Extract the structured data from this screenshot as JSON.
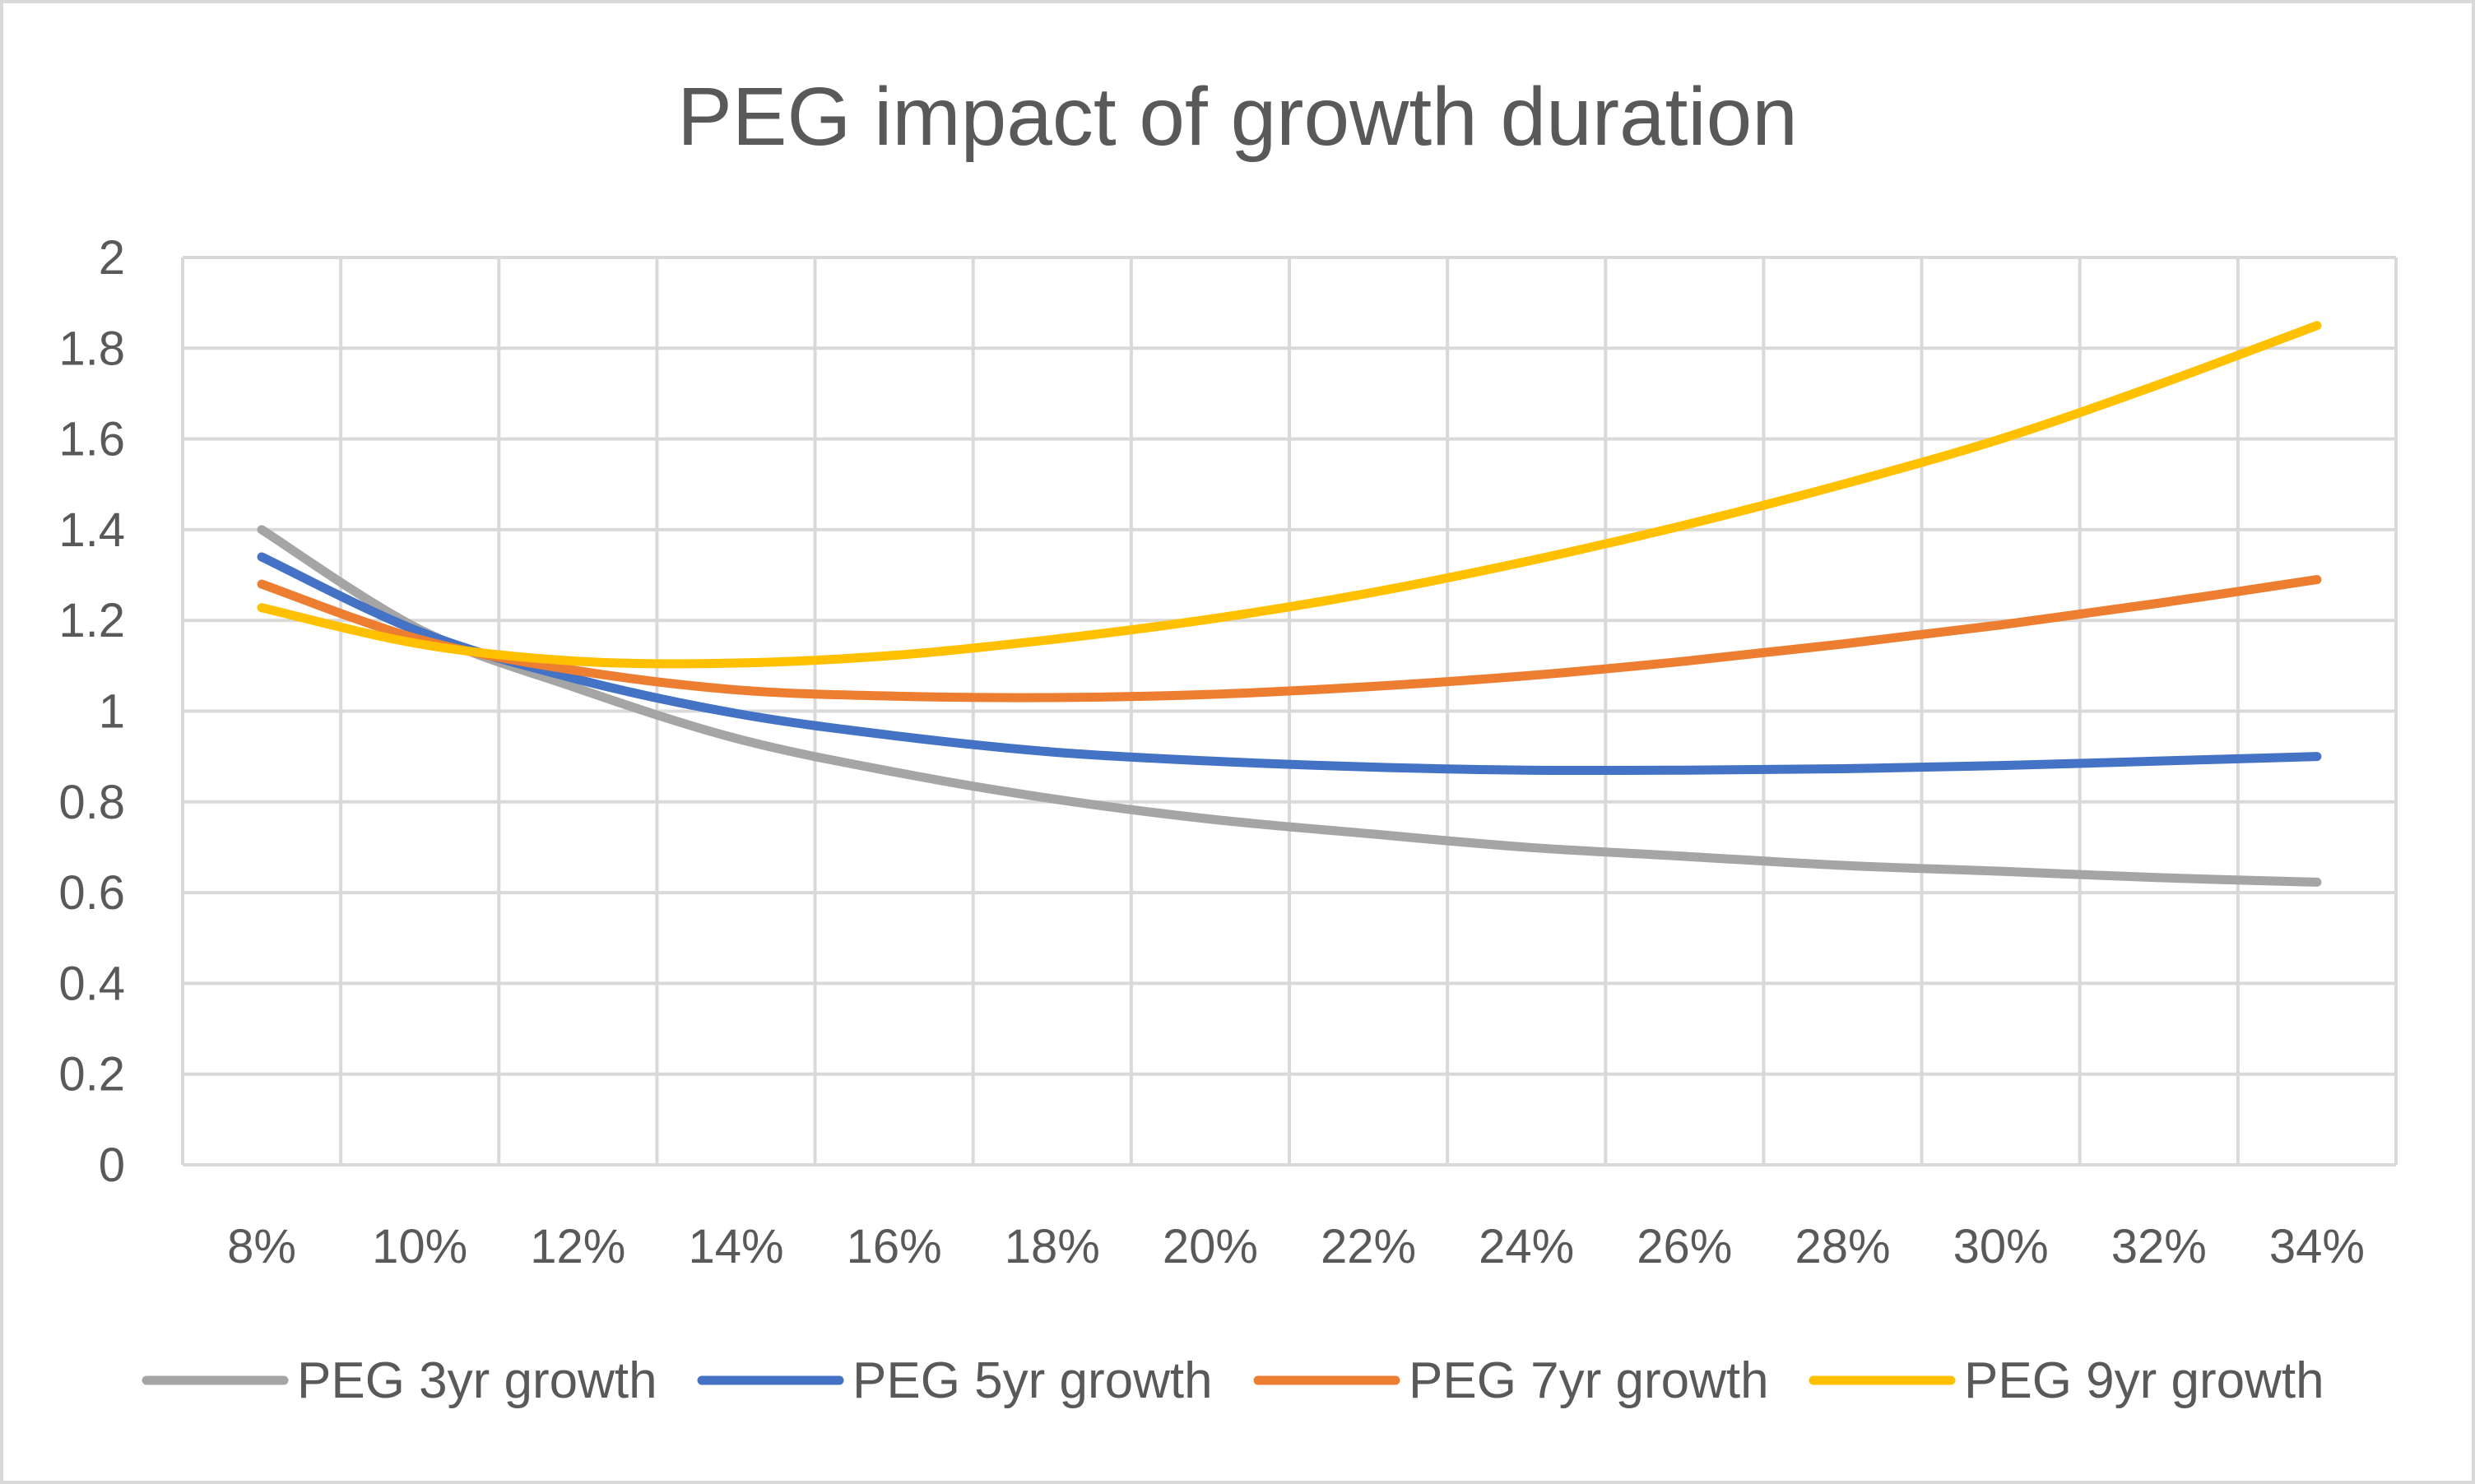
{
  "chart_data": {
    "type": "line",
    "title": "PEG impact of growth duration",
    "xlabel": "",
    "ylabel": "",
    "categories": [
      "8%",
      "10%",
      "12%",
      "14%",
      "16%",
      "18%",
      "20%",
      "22%",
      "24%",
      "26%",
      "28%",
      "30%",
      "32%",
      "34%"
    ],
    "ylim": [
      0,
      2
    ],
    "yticks": [
      "0",
      "0.2",
      "0.4",
      "0.6",
      "0.8",
      "1",
      "1.2",
      "1.4",
      "1.6",
      "1.8",
      "2"
    ],
    "grid": true,
    "legend_position": "bottom",
    "series": [
      {
        "name": "PEG 3yr growth",
        "color": "#A5A5A5",
        "values": [
          1.4,
          1.18,
          1.05,
          0.94,
          0.866,
          0.807,
          0.762,
          0.73,
          0.7,
          0.68,
          0.66,
          0.647,
          0.633,
          0.623
        ]
      },
      {
        "name": "PEG 5yr growth",
        "color": "#4472C4",
        "values": [
          1.34,
          1.175,
          1.07,
          0.995,
          0.946,
          0.91,
          0.89,
          0.877,
          0.87,
          0.87,
          0.873,
          0.88,
          0.89,
          0.9
        ]
      },
      {
        "name": "PEG 7yr growth",
        "color": "#ED7D31",
        "values": [
          1.28,
          1.158,
          1.089,
          1.047,
          1.033,
          1.03,
          1.037,
          1.054,
          1.078,
          1.11,
          1.148,
          1.19,
          1.238,
          1.29
        ]
      },
      {
        "name": "PEG 9yr growth",
        "color": "#FFC000",
        "values": [
          1.228,
          1.148,
          1.11,
          1.106,
          1.123,
          1.158,
          1.203,
          1.26,
          1.33,
          1.41,
          1.5,
          1.6,
          1.72,
          1.85
        ]
      }
    ]
  }
}
